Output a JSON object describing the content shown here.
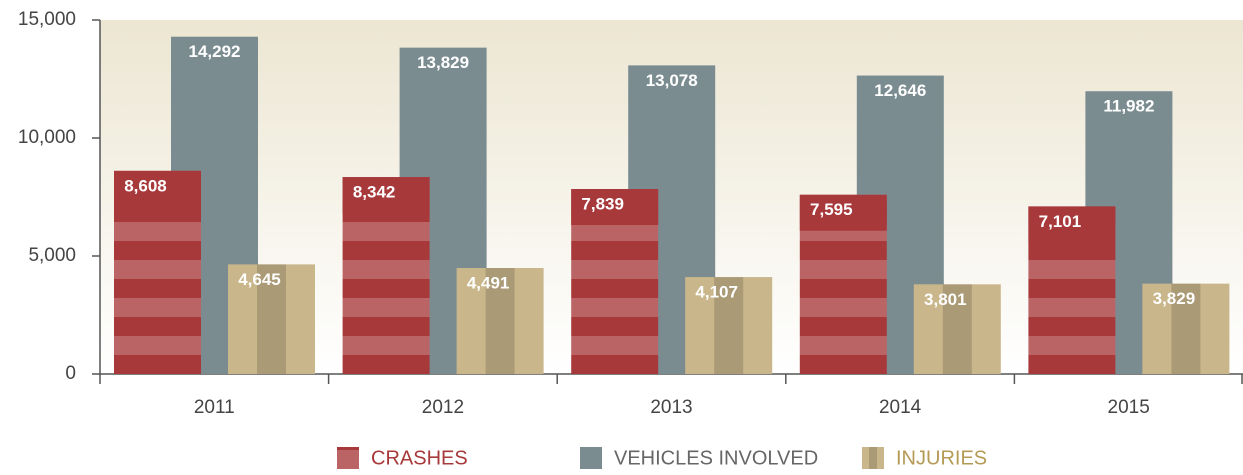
{
  "chart_data": {
    "type": "bar",
    "categories": [
      "2011",
      "2012",
      "2013",
      "2014",
      "2015"
    ],
    "series": [
      {
        "name": "CRASHES",
        "color": "#a8393b",
        "values": [
          8608,
          8342,
          7839,
          7595,
          7101
        ],
        "value_labels": [
          "8,608",
          "8,342",
          "7,839",
          "7,595",
          "7,101"
        ]
      },
      {
        "name": "VEHICLES INVOLVED",
        "color": "#7b8c91",
        "values": [
          14292,
          13829,
          13078,
          12646,
          11982
        ],
        "value_labels": [
          "14,292",
          "13,829",
          "13,078",
          "12,646",
          "11,982"
        ]
      },
      {
        "name": "INJURIES",
        "color": "#c9b68b",
        "values": [
          4645,
          4491,
          4107,
          3801,
          3829
        ],
        "value_labels": [
          "4,645",
          "4,491",
          "4,107",
          "3,801",
          "3,829"
        ]
      }
    ],
    "ylim": [
      0,
      15000
    ],
    "yticks": [
      0,
      {
        "value": 5000,
        "label": "5,000"
      },
      {
        "value": 10000,
        "label": "10,000"
      },
      {
        "value": 15000,
        "label": "15,000"
      }
    ]
  }
}
